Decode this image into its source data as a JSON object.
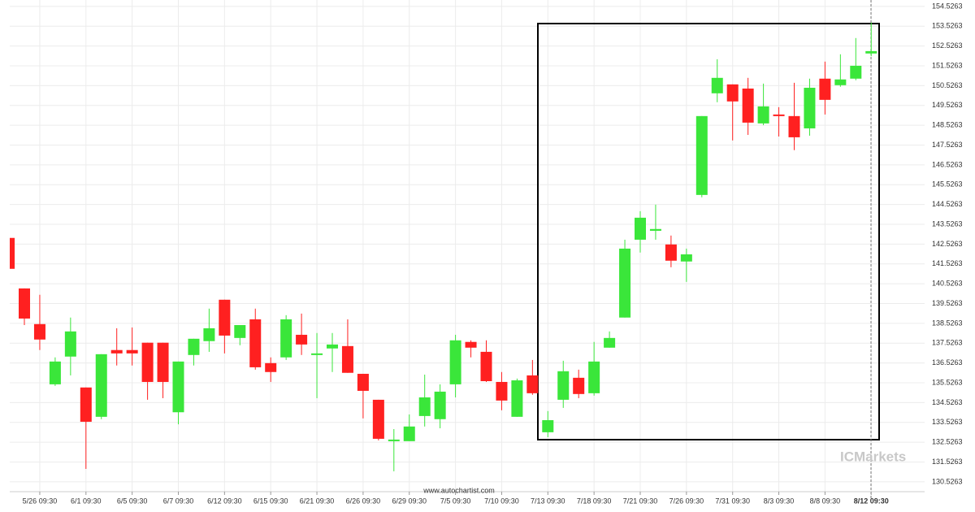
{
  "chart_data": {
    "type": "candlestick",
    "categories": [
      null,
      null,
      "5/26 09:30",
      null,
      null,
      "6/1 09:30",
      null,
      null,
      "6/5 09:30",
      null,
      null,
      "6/7 09:30",
      null,
      null,
      "6/12 09:30",
      null,
      null,
      "6/15 09:30",
      null,
      null,
      "6/21 09:30",
      null,
      null,
      "6/26 09:30",
      null,
      null,
      "6/29 09:30",
      null,
      null,
      "7/5 09:30",
      null,
      null,
      "7/10 09:30",
      null,
      null,
      "7/13 09:30",
      null,
      null,
      "7/18 09:30",
      null,
      null,
      "7/21 09:30",
      null,
      null,
      "7/26 09:30",
      null,
      null,
      "7/31 09:30",
      null,
      null,
      "8/3 09:30",
      null,
      null,
      "8/8 09:30",
      null,
      null,
      "8/12 09:30"
    ],
    "open": [
      142.84,
      140.29,
      138.49,
      135.45,
      136.85,
      135.29,
      133.81,
      137.18,
      137.18,
      137.55,
      137.55,
      134.04,
      136.93,
      137.63,
      139.72,
      137.79,
      138.73,
      136.52,
      136.81,
      137.95,
      136.93,
      137.26,
      137.38,
      135.98,
      134.67,
      132.62,
      132.58,
      133.85,
      133.69,
      135.45,
      137.59,
      137.09,
      135.57,
      133.81,
      135.9,
      133.03,
      134.67,
      135.78,
      135.0,
      137.3,
      138.82,
      142.75,
      143.2,
      142.51,
      141.65,
      145.01,
      150.14,
      150.59,
      150.38,
      148.62,
      149.07,
      148.99,
      148.37,
      150.88,
      150.55,
      150.88,
      152.15
    ],
    "high": [
      142.84,
      140.29,
      139.97,
      136.81,
      138.82,
      135.29,
      136.97,
      138.28,
      138.32,
      137.55,
      137.55,
      136.6,
      137.75,
      139.27,
      139.72,
      138.44,
      139.27,
      136.81,
      138.94,
      139.02,
      138.04,
      138.04,
      138.73,
      135.98,
      134.67,
      133.19,
      133.93,
      135.94,
      135.45,
      137.95,
      137.67,
      137.67,
      136.07,
      135.74,
      136.68,
      134.1,
      136.64,
      136.19,
      137.59,
      138.12,
      142.75,
      144.19,
      144.52,
      142.96,
      142.3,
      148.99,
      151.86,
      150.59,
      150.92,
      150.63,
      149.44,
      150.67,
      150.88,
      151.74,
      152.11,
      152.93,
      153.71
    ],
    "low": [
      141.28,
      138.44,
      137.18,
      135.37,
      135.9,
      131.18,
      133.69,
      136.4,
      136.4,
      134.67,
      134.75,
      133.43,
      136.4,
      137.09,
      137.01,
      137.42,
      136.19,
      135.57,
      136.68,
      136.93,
      134.75,
      136.07,
      136.03,
      133.73,
      132.62,
      131.06,
      132.58,
      133.32,
      133.23,
      134.79,
      136.81,
      135.57,
      134.14,
      133.81,
      134.92,
      132.78,
      134.26,
      134.75,
      134.88,
      137.3,
      138.82,
      142.1,
      142.75,
      141.36,
      140.62,
      144.89,
      149.69,
      147.76,
      148.04,
      148.53,
      147.96,
      147.27,
      148.0,
      149.07,
      150.47,
      150.8,
      152.02
    ],
    "close": [
      141.28,
      138.77,
      137.71,
      136.6,
      138.12,
      133.56,
      136.97,
      137.01,
      137.01,
      135.57,
      135.57,
      136.6,
      137.75,
      138.28,
      137.91,
      138.44,
      136.31,
      136.07,
      138.73,
      137.46,
      137.01,
      137.46,
      136.03,
      135.12,
      132.7,
      132.66,
      133.32,
      134.79,
      135.08,
      137.67,
      137.3,
      135.61,
      134.63,
      135.65,
      135.0,
      133.64,
      136.11,
      134.96,
      136.6,
      137.79,
      142.3,
      143.86,
      143.29,
      141.69,
      142.01,
      148.99,
      150.92,
      149.73,
      148.66,
      149.48,
      149.03,
      147.92,
      150.42,
      149.81,
      150.84,
      151.53,
      152.27
    ],
    "up_color": "#3ae63a",
    "down_color": "#ff2020",
    "ylim": [
      130.03,
      154.85
    ],
    "yticks": [
      130.5263,
      131.5263,
      132.5263,
      133.5263,
      134.5263,
      135.5263,
      136.5263,
      137.5263,
      138.5263,
      139.5263,
      140.5263,
      141.5263,
      142.5263,
      143.5263,
      144.5263,
      145.5263,
      146.5263,
      147.5263,
      148.5263,
      149.5263,
      150.5263,
      151.5263,
      152.5263,
      153.5263,
      154.5263
    ],
    "grid": true,
    "source": "www.autochartist.com",
    "watermark": "ICMarkets"
  }
}
